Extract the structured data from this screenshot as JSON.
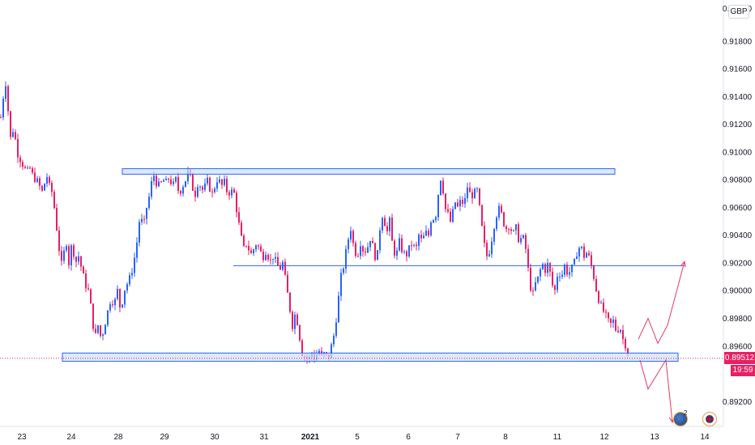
{
  "currency": "GBP",
  "price_tag": {
    "value": "0.89512",
    "color": "#e91e63"
  },
  "timer": "19:59",
  "event_icons": [
    {
      "name": "earth-globe-icon",
      "count": "2"
    },
    {
      "name": "uk-flag-icon"
    }
  ],
  "colors": {
    "up": "#2962ff",
    "down": "#e91e63",
    "zone_fill": "#cfe0f7",
    "zone_stroke": "#2962ff",
    "projection": "#e53963",
    "axis_text": "#131722"
  },
  "chart_data": {
    "type": "candlestick",
    "symbol_currency": "GBP",
    "y_ticks": [
      "0.91800",
      "0.91600",
      "0.91400",
      "0.91200",
      "0.91000",
      "0.90800",
      "0.90600",
      "0.90400",
      "0.90200",
      "0.90000",
      "0.89800",
      "0.89600",
      "0.89200"
    ],
    "y_top_partial": "0.92000",
    "x_ticks": [
      "23",
      "24",
      "28",
      "29",
      "30",
      "31",
      "2021",
      "5",
      "6",
      "7",
      "8",
      "11",
      "12",
      "13",
      "14"
    ],
    "ylim": [
      0.8905,
      0.9205
    ],
    "grid": false,
    "current_price": 0.89512,
    "path": [
      [
        0,
        0.9125
      ],
      [
        3,
        0.914
      ],
      [
        6,
        0.915
      ],
      [
        9,
        0.913
      ],
      [
        12,
        0.911
      ],
      [
        16,
        0.9118
      ],
      [
        20,
        0.91
      ],
      [
        24,
        0.9095
      ],
      [
        28,
        0.909
      ],
      [
        32,
        0.9085
      ],
      [
        36,
        0.9088
      ],
      [
        40,
        0.9082
      ],
      [
        44,
        0.908
      ],
      [
        48,
        0.9075
      ],
      [
        52,
        0.907
      ],
      [
        56,
        0.9085
      ],
      [
        60,
        0.9075
      ],
      [
        64,
        0.907
      ],
      [
        68,
        0.905
      ],
      [
        72,
        0.903
      ],
      [
        76,
        0.9015
      ],
      [
        80,
        0.904
      ],
      [
        84,
        0.902
      ],
      [
        88,
        0.9035
      ],
      [
        92,
        0.902
      ],
      [
        96,
        0.9025
      ],
      [
        100,
        0.9015
      ],
      [
        104,
        0.9005
      ],
      [
        108,
        0.9
      ],
      [
        112,
        0.8985
      ],
      [
        116,
        0.8965
      ],
      [
        120,
        0.8975
      ],
      [
        124,
        0.8965
      ],
      [
        128,
        0.8975
      ],
      [
        132,
        0.8985
      ],
      [
        136,
        0.8995
      ],
      [
        140,
        0.899
      ],
      [
        144,
        0.9
      ],
      [
        148,
        0.8985
      ],
      [
        152,
        0.9
      ],
      [
        156,
        0.9005
      ],
      [
        160,
        0.901
      ],
      [
        164,
        0.902
      ],
      [
        168,
        0.9035
      ],
      [
        172,
        0.9055
      ],
      [
        176,
        0.9045
      ],
      [
        180,
        0.906
      ],
      [
        184,
        0.907
      ],
      [
        188,
        0.9085
      ],
      [
        192,
        0.9078
      ],
      [
        196,
        0.9075
      ],
      [
        200,
        0.908
      ],
      [
        204,
        0.9078
      ],
      [
        208,
        0.9082
      ],
      [
        212,
        0.9075
      ],
      [
        216,
        0.908
      ],
      [
        220,
        0.907
      ],
      [
        224,
        0.9075
      ],
      [
        228,
        0.908
      ],
      [
        232,
        0.9088
      ],
      [
        236,
        0.9075
      ],
      [
        240,
        0.907
      ],
      [
        244,
        0.908
      ],
      [
        248,
        0.9072
      ],
      [
        252,
        0.9075
      ],
      [
        256,
        0.908
      ],
      [
        260,
        0.9068
      ],
      [
        264,
        0.9075
      ],
      [
        268,
        0.9082
      ],
      [
        272,
        0.9075
      ],
      [
        276,
        0.9078
      ],
      [
        280,
        0.907
      ],
      [
        284,
        0.9072
      ],
      [
        288,
        0.907
      ],
      [
        292,
        0.9055
      ],
      [
        296,
        0.904
      ],
      [
        300,
        0.903
      ],
      [
        304,
        0.9035
      ],
      [
        308,
        0.9025
      ],
      [
        312,
        0.903
      ],
      [
        316,
        0.9035
      ],
      [
        320,
        0.9028
      ],
      [
        324,
        0.9025
      ],
      [
        328,
        0.903
      ],
      [
        332,
        0.902
      ],
      [
        336,
        0.9025
      ],
      [
        340,
        0.902
      ],
      [
        344,
        0.9015
      ],
      [
        348,
        0.902
      ],
      [
        352,
        0.9005
      ],
      [
        356,
        0.899
      ],
      [
        360,
        0.8975
      ],
      [
        364,
        0.8985
      ],
      [
        368,
        0.897
      ],
      [
        372,
        0.8955
      ],
      [
        376,
        0.8952
      ],
      [
        380,
        0.895
      ],
      [
        384,
        0.8955
      ],
      [
        388,
        0.895
      ],
      [
        392,
        0.8958
      ],
      [
        396,
        0.8952
      ],
      [
        400,
        0.8955
      ],
      [
        404,
        0.895
      ],
      [
        408,
        0.896
      ],
      [
        412,
        0.897
      ],
      [
        416,
        0.899
      ],
      [
        420,
        0.901
      ],
      [
        424,
        0.902
      ],
      [
        428,
        0.9035
      ],
      [
        432,
        0.9045
      ],
      [
        436,
        0.903
      ],
      [
        440,
        0.9025
      ],
      [
        444,
        0.9035
      ],
      [
        448,
        0.9028
      ],
      [
        452,
        0.903
      ],
      [
        456,
        0.9038
      ],
      [
        460,
        0.903
      ],
      [
        464,
        0.902
      ],
      [
        468,
        0.9045
      ],
      [
        472,
        0.9058
      ],
      [
        476,
        0.904
      ],
      [
        480,
        0.905
      ],
      [
        484,
        0.903
      ],
      [
        488,
        0.9025
      ],
      [
        492,
        0.9035
      ],
      [
        496,
        0.9028
      ],
      [
        500,
        0.9025
      ],
      [
        504,
        0.903
      ],
      [
        508,
        0.9035
      ],
      [
        512,
        0.9028
      ],
      [
        516,
        0.904
      ],
      [
        520,
        0.9035
      ],
      [
        524,
        0.9042
      ],
      [
        528,
        0.904
      ],
      [
        532,
        0.9055
      ],
      [
        536,
        0.905
      ],
      [
        540,
        0.907
      ],
      [
        544,
        0.9085
      ],
      [
        548,
        0.906
      ],
      [
        552,
        0.9055
      ],
      [
        556,
        0.9048
      ],
      [
        560,
        0.9065
      ],
      [
        564,
        0.906
      ],
      [
        568,
        0.9065
      ],
      [
        572,
        0.9062
      ],
      [
        576,
        0.9075
      ],
      [
        580,
        0.9068
      ],
      [
        584,
        0.907
      ],
      [
        588,
        0.9072
      ],
      [
        592,
        0.9055
      ],
      [
        596,
        0.9035
      ],
      [
        600,
        0.9025
      ],
      [
        604,
        0.903
      ],
      [
        608,
        0.9045
      ],
      [
        612,
        0.9055
      ],
      [
        616,
        0.906
      ],
      [
        620,
        0.905
      ],
      [
        624,
        0.9045
      ],
      [
        628,
        0.9048
      ],
      [
        632,
        0.904
      ],
      [
        636,
        0.9045
      ],
      [
        640,
        0.9035
      ],
      [
        644,
        0.904
      ],
      [
        648,
        0.903
      ],
      [
        652,
        0.901
      ],
      [
        656,
        0.8995
      ],
      [
        660,
        0.9005
      ],
      [
        664,
        0.901
      ],
      [
        668,
        0.902
      ],
      [
        672,
        0.9015
      ],
      [
        676,
        0.902
      ],
      [
        680,
        0.9005
      ],
      [
        684,
        0.9
      ],
      [
        688,
        0.9015
      ],
      [
        692,
        0.901
      ],
      [
        696,
        0.9018
      ],
      [
        700,
        0.9012
      ],
      [
        704,
        0.9015
      ],
      [
        708,
        0.902
      ],
      [
        712,
        0.903
      ],
      [
        716,
        0.9032
      ],
      [
        720,
        0.9025
      ],
      [
        724,
        0.9028
      ],
      [
        728,
        0.902
      ],
      [
        732,
        0.901
      ],
      [
        736,
        0.8998
      ],
      [
        740,
        0.899
      ],
      [
        744,
        0.8985
      ],
      [
        748,
        0.898
      ],
      [
        752,
        0.8975
      ],
      [
        756,
        0.8978
      ],
      [
        760,
        0.897
      ],
      [
        764,
        0.8975
      ],
      [
        768,
        0.8965
      ],
      [
        772,
        0.896
      ],
      [
        776,
        0.8951
      ]
    ],
    "zones": [
      {
        "name": "resistance-zone",
        "x": [
          151,
          759
        ],
        "y": [
          0.9084,
          0.9088
        ]
      },
      {
        "name": "support-zone",
        "x": [
          77,
          837
        ],
        "y": [
          0.8949,
          0.8955
        ]
      }
    ],
    "lines": [
      {
        "name": "mid-horizontal-line",
        "x": [
          288,
          845
        ],
        "y": 0.9018
      }
    ],
    "projection": [
      [
        788,
        0.8965
      ],
      [
        800,
        0.898
      ],
      [
        812,
        0.8962
      ],
      [
        824,
        0.8975
      ],
      [
        845,
        0.9021
      ]
    ],
    "projection_down": [
      [
        790,
        0.895
      ],
      [
        800,
        0.8929
      ],
      [
        822,
        0.895
      ],
      [
        830,
        0.8905
      ]
    ]
  }
}
